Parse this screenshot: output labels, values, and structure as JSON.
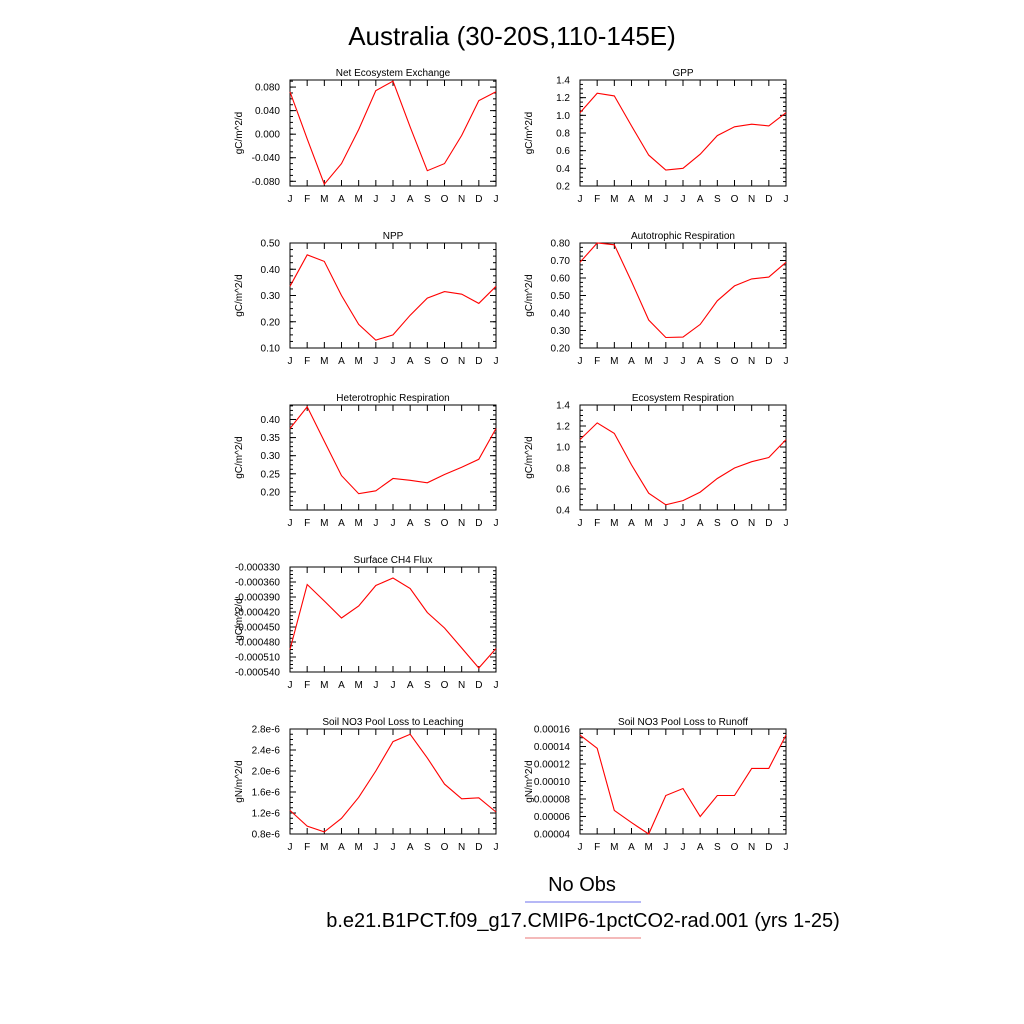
{
  "figure": {
    "title": "Australia (30-20S,110-145E)",
    "legend": [
      {
        "label": "No Obs",
        "color": "#8a8ef0"
      },
      {
        "label": "b.e21.B1PCT.f09_g17.CMIP6-1pctCO2-rad.001 (yrs 1-25)",
        "color": "#ee9090"
      }
    ]
  },
  "chart_data": [
    {
      "type": "line",
      "title": "Net Ecosystem Exchange",
      "ylabel": "gC/m^2/d",
      "x": [
        "J",
        "F",
        "M",
        "A",
        "M",
        "J",
        "J",
        "A",
        "S",
        "O",
        "N",
        "D",
        "J"
      ],
      "ylim": [
        -0.088,
        0.092
      ],
      "yticks": [
        -0.08,
        -0.04,
        0.0,
        0.04,
        0.08
      ],
      "ytick_labels": [
        "-0.080",
        "-0.040",
        "0.000",
        "0.040",
        "0.080"
      ],
      "series": [
        {
          "color": "#ff0000",
          "values": [
            0.072,
            -0.008,
            -0.085,
            -0.05,
            0.008,
            0.074,
            0.09,
            0.012,
            -0.062,
            -0.05,
            -0.002,
            0.057,
            0.072
          ]
        }
      ]
    },
    {
      "type": "line",
      "title": "GPP",
      "ylabel": "gC/m^2/d",
      "x": [
        "J",
        "F",
        "M",
        "A",
        "M",
        "J",
        "J",
        "A",
        "S",
        "O",
        "N",
        "D",
        "J"
      ],
      "ylim": [
        0.2,
        1.4
      ],
      "yticks": [
        0.2,
        0.4,
        0.6,
        0.8,
        1.0,
        1.2,
        1.4
      ],
      "ytick_labels": [
        "0.2",
        "0.4",
        "0.6",
        "0.8",
        "1.0",
        "1.2",
        "1.4"
      ],
      "series": [
        {
          "color": "#ff0000",
          "values": [
            1.03,
            1.25,
            1.22,
            0.88,
            0.55,
            0.38,
            0.4,
            0.56,
            0.77,
            0.87,
            0.9,
            0.88,
            1.03
          ]
        }
      ]
    },
    {
      "type": "line",
      "title": "NPP",
      "ylabel": "gC/m^2/d",
      "x": [
        "J",
        "F",
        "M",
        "A",
        "M",
        "J",
        "J",
        "A",
        "S",
        "O",
        "N",
        "D",
        "J"
      ],
      "ylim": [
        0.1,
        0.5
      ],
      "yticks": [
        0.1,
        0.2,
        0.3,
        0.4,
        0.5
      ],
      "ytick_labels": [
        "0.10",
        "0.20",
        "0.30",
        "0.40",
        "0.50"
      ],
      "series": [
        {
          "color": "#ff0000",
          "values": [
            0.335,
            0.455,
            0.43,
            0.3,
            0.19,
            0.13,
            0.15,
            0.225,
            0.29,
            0.315,
            0.305,
            0.27,
            0.335
          ]
        }
      ]
    },
    {
      "type": "line",
      "title": "Autotrophic Respiration",
      "ylabel": "gC/m^2/d",
      "x": [
        "J",
        "F",
        "M",
        "A",
        "M",
        "J",
        "J",
        "A",
        "S",
        "O",
        "N",
        "D",
        "J"
      ],
      "ylim": [
        0.2,
        0.8
      ],
      "yticks": [
        0.2,
        0.3,
        0.4,
        0.5,
        0.6,
        0.7,
        0.8
      ],
      "ytick_labels": [
        "0.20",
        "0.30",
        "0.40",
        "0.50",
        "0.60",
        "0.70",
        "0.80"
      ],
      "series": [
        {
          "color": "#ff0000",
          "values": [
            0.69,
            0.8,
            0.79,
            0.58,
            0.36,
            0.26,
            0.262,
            0.335,
            0.47,
            0.555,
            0.595,
            0.605,
            0.69
          ]
        }
      ]
    },
    {
      "type": "line",
      "title": "Heterotrophic Respiration",
      "ylabel": "gC/m^2/d",
      "x": [
        "J",
        "F",
        "M",
        "A",
        "M",
        "J",
        "J",
        "A",
        "S",
        "O",
        "N",
        "D",
        "J"
      ],
      "ylim": [
        0.15,
        0.44
      ],
      "yticks": [
        0.2,
        0.25,
        0.3,
        0.35,
        0.4
      ],
      "ytick_labels": [
        "0.20",
        "0.25",
        "0.30",
        "0.35",
        "0.40"
      ],
      "series": [
        {
          "color": "#ff0000",
          "values": [
            0.375,
            0.435,
            0.34,
            0.245,
            0.195,
            0.203,
            0.237,
            0.232,
            0.225,
            0.248,
            0.268,
            0.29,
            0.375
          ]
        }
      ]
    },
    {
      "type": "line",
      "title": "Ecosystem Respiration",
      "ylabel": "gC/m^2/d",
      "x": [
        "J",
        "F",
        "M",
        "A",
        "M",
        "J",
        "J",
        "A",
        "S",
        "O",
        "N",
        "D",
        "J"
      ],
      "ylim": [
        0.4,
        1.4
      ],
      "yticks": [
        0.4,
        0.6,
        0.8,
        1.0,
        1.2,
        1.4
      ],
      "ytick_labels": [
        "0.4",
        "0.6",
        "0.8",
        "1.0",
        "1.2",
        "1.4"
      ],
      "series": [
        {
          "color": "#ff0000",
          "values": [
            1.07,
            1.23,
            1.13,
            0.83,
            0.56,
            0.45,
            0.49,
            0.57,
            0.7,
            0.8,
            0.86,
            0.9,
            1.07
          ]
        }
      ]
    },
    {
      "type": "line",
      "title": "Surface CH4 Flux",
      "ylabel": "gC/m^2/d",
      "x": [
        "J",
        "F",
        "M",
        "A",
        "M",
        "J",
        "J",
        "A",
        "S",
        "O",
        "N",
        "D",
        "J"
      ],
      "ylim": [
        -0.00054,
        -0.00033
      ],
      "yticks": [
        -0.00054,
        -0.00051,
        -0.00048,
        -0.00045,
        -0.00042,
        -0.00039,
        -0.00036,
        -0.00033
      ],
      "ytick_labels": [
        "-0.000540",
        "-0.000510",
        "-0.000480",
        "-0.000450",
        "-0.000420",
        "-0.000390",
        "-0.000360",
        "-0.000330"
      ],
      "series": [
        {
          "color": "#ff0000",
          "values": [
            -0.000495,
            -0.000365,
            -0.000398,
            -0.000432,
            -0.000408,
            -0.000367,
            -0.000352,
            -0.000373,
            -0.000421,
            -0.000452,
            -0.000492,
            -0.000532,
            -0.000493
          ]
        }
      ]
    },
    {
      "type": "line",
      "title": "Soil NO3 Pool Loss to Leaching",
      "ylabel": "gN/m^2/d",
      "x": [
        "J",
        "F",
        "M",
        "A",
        "M",
        "J",
        "J",
        "A",
        "S",
        "O",
        "N",
        "D",
        "J"
      ],
      "ylim": [
        8e-07,
        2.8e-06
      ],
      "yticks": [
        8e-07,
        1.2e-06,
        1.6e-06,
        2e-06,
        2.4e-06,
        2.8e-06
      ],
      "ytick_labels": [
        "0.8e-6",
        "1.2e-6",
        "1.6e-6",
        "2.0e-6",
        "2.4e-6",
        "2.8e-6"
      ],
      "series": [
        {
          "color": "#ff0000",
          "values": [
            1.25e-06,
            9.5e-07,
            8.4e-07,
            1.1e-06,
            1.5e-06,
            2e-06,
            2.56e-06,
            2.7e-06,
            2.25e-06,
            1.75e-06,
            1.47e-06,
            1.49e-06,
            1.22e-06
          ]
        }
      ]
    },
    {
      "type": "line",
      "title": "Soil NO3 Pool Loss to Runoff",
      "ylabel": "gN/m^2/d",
      "x": [
        "J",
        "F",
        "M",
        "A",
        "M",
        "J",
        "J",
        "A",
        "S",
        "O",
        "N",
        "D",
        "J"
      ],
      "ylim": [
        4e-05,
        0.00016
      ],
      "yticks": [
        4e-05,
        6e-05,
        8e-05,
        0.0001,
        0.00012,
        0.00014,
        0.00016
      ],
      "ytick_labels": [
        "0.00004",
        "0.00006",
        "0.00008",
        "0.00010",
        "0.00012",
        "0.00014",
        "0.00016"
      ],
      "series": [
        {
          "color": "#ff0000",
          "values": [
            0.000153,
            0.000138,
            6.7e-05,
            5.3e-05,
            4e-05,
            8.4e-05,
            9.2e-05,
            6e-05,
            8.4e-05,
            8.4e-05,
            0.000115,
            0.000115,
            0.000153
          ]
        }
      ]
    }
  ]
}
